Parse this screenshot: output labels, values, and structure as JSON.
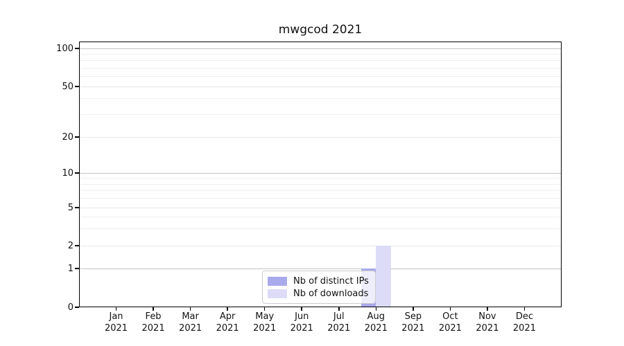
{
  "window": {
    "background": "#ffffff"
  },
  "chart_data": {
    "type": "bar",
    "title": "mwgcod 2021",
    "categories": [
      "Jan 2021",
      "Feb 2021",
      "Mar 2021",
      "Apr 2021",
      "May 2021",
      "Jun 2021",
      "Jul 2021",
      "Aug 2021",
      "Sep 2021",
      "Oct 2021",
      "Nov 2021",
      "Dec 2021"
    ],
    "series": [
      {
        "name": "Nb of distinct IPs",
        "color": "#a9aaec",
        "values": [
          0,
          0,
          0,
          0,
          0,
          0,
          0,
          1,
          0,
          0,
          0,
          0
        ]
      },
      {
        "name": "Nb of downloads",
        "color": "#dcdcf8",
        "values": [
          0,
          0,
          0,
          0,
          0,
          0,
          0,
          2,
          0,
          0,
          0,
          0
        ]
      }
    ],
    "xlabel": "",
    "ylabel": "",
    "y_axis": {
      "scale": "log-like (0 baseline)",
      "tick_values": [
        0,
        1,
        2,
        5,
        10,
        20,
        50,
        100
      ],
      "range": [
        0,
        115
      ]
    },
    "grid": "on",
    "legend": {
      "position": "bottom-center",
      "entries": [
        "Nb of distinct IPs",
        "Nb of downloads"
      ]
    },
    "colors": {
      "major_gridline": "#c3c3c3",
      "labeled_gridline": "#e7e7e7",
      "minor_gridline": "#efefef",
      "axis": "#000000"
    }
  }
}
